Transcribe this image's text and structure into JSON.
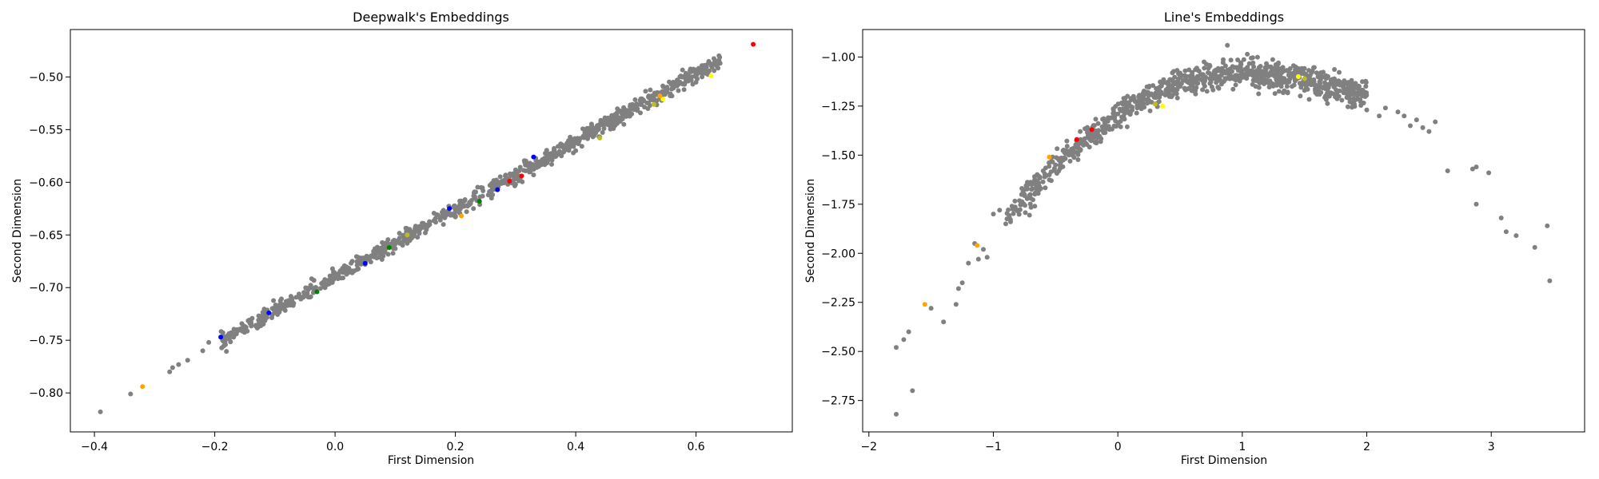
{
  "chart_data": [
    {
      "type": "scatter",
      "title": "Deepwalk's Embeddings",
      "xlabel": "First Dimension",
      "ylabel": "Second Dimension",
      "xlim": [
        -0.44,
        0.76
      ],
      "ylim": [
        -0.837,
        -0.455
      ],
      "xticks": [
        -0.4,
        -0.2,
        0.0,
        0.2,
        0.4,
        0.6
      ],
      "xtick_labels": [
        "−0.4",
        "−0.2",
        "0.0",
        "0.2",
        "0.4",
        "0.6"
      ],
      "yticks": [
        -0.8,
        -0.75,
        -0.7,
        -0.65,
        -0.6,
        -0.55,
        -0.5
      ],
      "ytick_labels": [
        "−0.80",
        "−0.75",
        "−0.70",
        "−0.65",
        "−0.60",
        "−0.55",
        "−0.50"
      ],
      "grid": false,
      "colors": {
        "gray": "#808080",
        "red": "#ff0000",
        "blue": "#0000ff",
        "green": "#008000",
        "orange": "#ffa500",
        "yellow": "#ffff00",
        "olive": "#bcbd22"
      },
      "series": [
        {
          "color": "#808080",
          "points": [
            [
              -0.39,
              -0.818
            ],
            [
              -0.34,
              -0.801
            ],
            [
              -0.275,
              -0.78
            ],
            [
              -0.27,
              -0.776
            ],
            [
              -0.26,
              -0.773
            ],
            [
              -0.245,
              -0.769
            ],
            [
              -0.22,
              -0.76
            ],
            [
              -0.21,
              -0.752
            ],
            [
              -0.16,
              -0.74
            ],
            [
              -0.15,
              -0.737
            ],
            [
              -0.14,
              -0.732
            ],
            [
              -0.12,
              -0.727
            ],
            [
              -0.1,
              -0.72
            ],
            [
              -0.08,
              -0.713
            ],
            [
              -0.06,
              -0.706
            ],
            [
              -0.04,
              -0.7
            ],
            [
              -0.02,
              -0.695
            ],
            [
              0.0,
              -0.69
            ],
            [
              0.02,
              -0.686
            ],
            [
              0.05,
              -0.678
            ],
            [
              0.08,
              -0.67
            ],
            [
              0.1,
              -0.663
            ],
            [
              0.12,
              -0.658
            ],
            [
              0.15,
              -0.648
            ],
            [
              0.18,
              -0.64
            ],
            [
              0.2,
              -0.633
            ],
            [
              0.23,
              -0.625
            ],
            [
              0.26,
              -0.615
            ],
            [
              0.3,
              -0.602
            ],
            [
              0.33,
              -0.593
            ],
            [
              0.36,
              -0.583
            ],
            [
              0.4,
              -0.57
            ],
            [
              0.44,
              -0.557
            ],
            [
              0.48,
              -0.545
            ],
            [
              0.52,
              -0.53
            ],
            [
              0.56,
              -0.518
            ],
            [
              0.58,
              -0.512
            ],
            [
              0.6,
              -0.505
            ],
            [
              0.61,
              -0.5
            ],
            [
              0.63,
              -0.494
            ],
            [
              0.635,
              -0.49
            ],
            [
              0.64,
              -0.487
            ]
          ]
        },
        {
          "color": "#ff0000",
          "points": [
            [
              0.695,
              -0.469
            ],
            [
              0.29,
              -0.599
            ],
            [
              0.31,
              -0.594
            ]
          ]
        },
        {
          "color": "#ffff00",
          "points": [
            [
              0.625,
              -0.499
            ],
            [
              0.545,
              -0.521
            ]
          ]
        },
        {
          "color": "#ffa500",
          "points": [
            [
              -0.32,
              -0.794
            ],
            [
              0.21,
              -0.632
            ],
            [
              0.54,
              -0.518
            ]
          ]
        },
        {
          "color": "#0000ff",
          "points": [
            [
              -0.19,
              -0.747
            ],
            [
              -0.11,
              -0.724
            ],
            [
              0.05,
              -0.677
            ],
            [
              0.19,
              -0.625
            ],
            [
              0.27,
              -0.607
            ],
            [
              0.33,
              -0.576
            ]
          ]
        },
        {
          "color": "#008000",
          "points": [
            [
              -0.03,
              -0.704
            ],
            [
              0.09,
              -0.662
            ],
            [
              0.24,
              -0.618
            ]
          ]
        },
        {
          "color": "#bcbd22",
          "points": [
            [
              0.12,
              -0.65
            ],
            [
              0.44,
              -0.558
            ],
            [
              0.53,
              -0.526
            ]
          ]
        }
      ],
      "band": {
        "color": "#808080",
        "note_x_range": [
          -0.19,
          0.64
        ],
        "slope": 0.323,
        "intercept": -0.69
      }
    },
    {
      "type": "scatter",
      "title": "Line's Embeddings",
      "xlabel": "First Dimension",
      "ylabel": "Second Dimension",
      "xlim": [
        -2.05,
        3.75
      ],
      "ylim": [
        -2.91,
        -0.86
      ],
      "xticks": [
        -2,
        -1,
        0,
        1,
        2,
        3
      ],
      "xtick_labels": [
        "−2",
        "−1",
        "0",
        "1",
        "2",
        "3"
      ],
      "yticks": [
        -2.75,
        -2.5,
        -2.25,
        -2.0,
        -1.75,
        -1.5,
        -1.25,
        -1.0
      ],
      "ytick_labels": [
        "−2.75",
        "−2.50",
        "−2.25",
        "−2.00",
        "−1.75",
        "−1.50",
        "−1.25",
        "−1.00"
      ],
      "grid": false,
      "series": [
        {
          "color": "#808080",
          "points": [
            [
              -1.78,
              -2.82
            ],
            [
              -1.78,
              -2.48
            ],
            [
              -1.72,
              -2.44
            ],
            [
              -1.68,
              -2.4
            ],
            [
              -1.65,
              -2.7
            ],
            [
              -1.5,
              -2.28
            ],
            [
              -1.4,
              -2.35
            ],
            [
              -1.3,
              -2.26
            ],
            [
              -1.28,
              -2.18
            ],
            [
              -1.25,
              -2.15
            ],
            [
              -1.2,
              -2.05
            ],
            [
              -1.15,
              -1.95
            ],
            [
              -1.12,
              -2.03
            ],
            [
              -1.08,
              -1.98
            ],
            [
              -1.05,
              -2.02
            ],
            [
              -1.0,
              -1.8
            ],
            [
              -0.95,
              -1.78
            ],
            [
              -0.9,
              -1.85
            ],
            [
              -0.85,
              -1.76
            ],
            [
              -0.75,
              -1.7
            ],
            [
              -0.7,
              -1.72
            ],
            [
              -0.65,
              -1.63
            ],
            [
              -0.6,
              -1.58
            ],
            [
              -0.5,
              -1.55
            ],
            [
              -0.4,
              -1.48
            ],
            [
              -0.3,
              -1.42
            ],
            [
              -0.2,
              -1.38
            ],
            [
              -0.1,
              -1.33
            ],
            [
              0.0,
              -1.29
            ],
            [
              0.1,
              -1.25
            ],
            [
              0.2,
              -1.22
            ],
            [
              0.3,
              -1.19
            ],
            [
              0.4,
              -1.16
            ],
            [
              0.5,
              -1.15
            ],
            [
              0.6,
              -1.13
            ],
            [
              0.7,
              -1.12
            ],
            [
              0.8,
              -1.1
            ],
            [
              0.88,
              -0.94
            ],
            [
              1.0,
              -1.08
            ],
            [
              1.1,
              -1.1
            ],
            [
              1.2,
              -1.12
            ],
            [
              1.3,
              -1.13
            ],
            [
              1.4,
              -1.15
            ],
            [
              1.5,
              -1.17
            ],
            [
              1.6,
              -1.19
            ],
            [
              1.7,
              -1.2
            ],
            [
              1.8,
              -1.22
            ],
            [
              1.9,
              -1.24
            ],
            [
              2.0,
              -1.27
            ],
            [
              2.1,
              -1.3
            ],
            [
              2.15,
              -1.26
            ],
            [
              2.25,
              -1.28
            ],
            [
              2.3,
              -1.3
            ],
            [
              2.35,
              -1.35
            ],
            [
              2.4,
              -1.32
            ],
            [
              2.45,
              -1.36
            ],
            [
              2.5,
              -1.38
            ],
            [
              2.55,
              -1.33
            ],
            [
              2.65,
              -1.58
            ],
            [
              2.85,
              -1.57
            ],
            [
              2.88,
              -1.56
            ],
            [
              2.88,
              -1.75
            ],
            [
              2.98,
              -1.59
            ],
            [
              3.08,
              -1.82
            ],
            [
              3.12,
              -1.89
            ],
            [
              3.2,
              -1.91
            ],
            [
              3.35,
              -1.97
            ],
            [
              3.45,
              -1.86
            ],
            [
              3.47,
              -2.14
            ]
          ]
        },
        {
          "color": "#ffa500",
          "points": [
            [
              -1.55,
              -2.26
            ],
            [
              -1.13,
              -1.96
            ],
            [
              -0.55,
              -1.51
            ]
          ]
        },
        {
          "color": "#ff0000",
          "points": [
            [
              -0.33,
              -1.42
            ],
            [
              -0.21,
              -1.37
            ]
          ]
        },
        {
          "color": "#ffff00",
          "points": [
            [
              0.36,
              -1.25
            ],
            [
              1.45,
              -1.1
            ]
          ]
        },
        {
          "color": "#bcbd22",
          "points": [
            [
              0.3,
              -1.24
            ],
            [
              1.5,
              -1.11
            ]
          ]
        }
      ],
      "band": {
        "color": "#808080",
        "note": "dense arc of points",
        "x_range": [
          -1.0,
          2.0
        ]
      }
    }
  ]
}
